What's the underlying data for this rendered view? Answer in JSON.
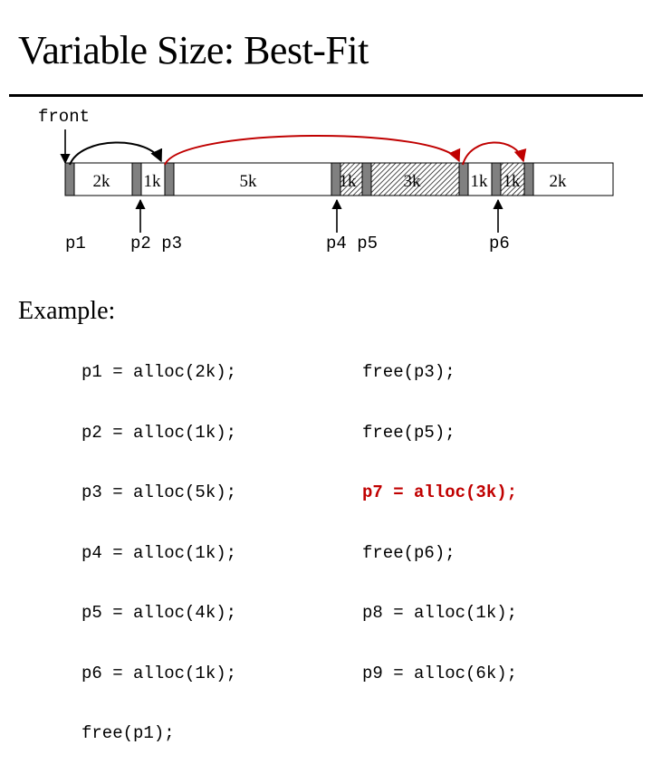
{
  "title": "Variable Size: Best-Fit",
  "front_label": "front",
  "blocks": [
    {
      "label": "2k",
      "state": "free"
    },
    {
      "label": "1k",
      "state": "free"
    },
    {
      "label": "5k",
      "state": "free"
    },
    {
      "label": "1k",
      "state": "allocated"
    },
    {
      "label": "3k",
      "state": "allocated"
    },
    {
      "label": "1k",
      "state": "free"
    },
    {
      "label": "1k",
      "state": "allocated"
    },
    {
      "label": "2k",
      "state": "free"
    }
  ],
  "pointers": [
    {
      "label": "p1"
    },
    {
      "label": "p2 p3"
    },
    {
      "label": "p4 p5"
    },
    {
      "label": "p6"
    }
  ],
  "example_label": "Example:",
  "code_left": [
    "p1 = alloc(2k);",
    "p2 = alloc(1k);",
    "p3 = alloc(5k);",
    "p4 = alloc(1k);",
    "p5 = alloc(4k);",
    "p6 = alloc(1k);",
    "free(p1);"
  ],
  "code_right": [
    "free(p3);",
    "free(p5);",
    "p7 = alloc(3k);",
    "free(p6);",
    "p8 = alloc(1k);",
    "p9 = alloc(6k);"
  ],
  "highlight_line": "p7 = alloc(3k);",
  "colors": {
    "arrow_red": "#c00000",
    "header_gray": "#808080",
    "text": "#000000"
  }
}
